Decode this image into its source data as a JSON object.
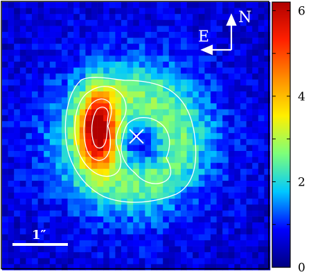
{
  "image": {
    "kind": "astronomical flux map",
    "compass": {
      "north_label": "N",
      "east_label": "E"
    },
    "scale_bar_label": "1″",
    "marker": "x-marker-icon",
    "contour_color": "#ffffff"
  },
  "colorbar": {
    "min": 0,
    "max": 6.2,
    "ticks": [
      {
        "value": 0,
        "label": "0"
      },
      {
        "value": 2,
        "label": "2"
      },
      {
        "value": 4,
        "label": "4"
      },
      {
        "value": 6,
        "label": "6"
      }
    ],
    "colors": [
      "#00007f",
      "#0000ff",
      "#00c8ff",
      "#7dff7a",
      "#ffef00",
      "#ff8c00",
      "#ff2000",
      "#b00000"
    ]
  }
}
